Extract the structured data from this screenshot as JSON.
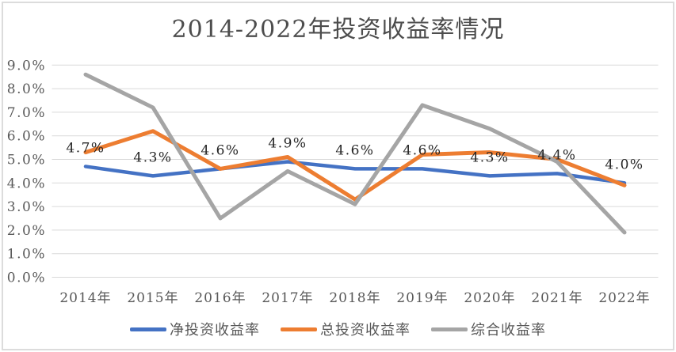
{
  "chart_data": {
    "type": "line",
    "title": "2014-2022年投资收益率情况",
    "categories": [
      "2014年",
      "2015年",
      "2016年",
      "2017年",
      "2018年",
      "2019年",
      "2020年",
      "2021年",
      "2022年"
    ],
    "series": [
      {
        "name": "净投资收益率",
        "color": "#4472C4",
        "values": [
          4.7,
          4.3,
          4.6,
          4.9,
          4.6,
          4.6,
          4.3,
          4.4,
          4.0
        ],
        "data_labels": [
          "4.7%",
          "4.3%",
          "4.6%",
          "4.9%",
          "4.6%",
          "4.6%",
          "4.3%",
          "4.4%",
          "4.0%"
        ]
      },
      {
        "name": "总投资收益率",
        "color": "#ED7D31",
        "values": [
          5.3,
          6.2,
          4.6,
          5.1,
          3.3,
          5.2,
          5.3,
          5.0,
          3.9
        ],
        "data_labels": []
      },
      {
        "name": "综合收益率",
        "color": "#A5A5A5",
        "values": [
          8.6,
          7.2,
          2.5,
          4.5,
          3.1,
          7.3,
          6.3,
          4.9,
          1.9
        ],
        "data_labels": []
      }
    ],
    "ylim": [
      0,
      9
    ],
    "ytick_labels": [
      "0.0%",
      "1.0%",
      "2.0%",
      "3.0%",
      "4.0%",
      "5.0%",
      "6.0%",
      "7.0%",
      "8.0%",
      "9.0%"
    ],
    "xlabel": "",
    "ylabel": "",
    "grid": true,
    "legend_position": "bottom"
  },
  "styles": {
    "background": "#FFFFFF",
    "frame_border_color": "#DCDCDC",
    "grid_color": "#D9D9D9",
    "axis_text_color": "#595959",
    "title_color": "#4D4D4D",
    "data_label_color": "#262626"
  }
}
